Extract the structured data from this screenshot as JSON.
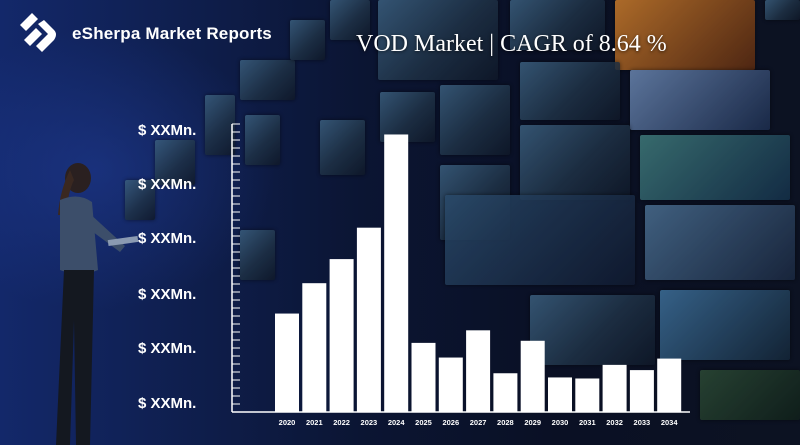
{
  "brand": {
    "name": "eSherpa Market Reports"
  },
  "chart_data": {
    "type": "bar",
    "title": "VOD Market | CAGR of 8.64 %",
    "xlabel": "",
    "ylabel": "",
    "categories": [
      "2020",
      "2021",
      "2022",
      "2023",
      "2024",
      "2025",
      "2026",
      "2027",
      "2028",
      "2029",
      "2030",
      "2031",
      "2032",
      "2033",
      "2034"
    ],
    "values": [
      94,
      123,
      146,
      176,
      265,
      66,
      52,
      78,
      37,
      68,
      33,
      32,
      45,
      40,
      51
    ],
    "ylim": [
      0,
      275
    ],
    "y_tick_labels": [
      "$ XXMn.",
      "$ XXMn.",
      "$ XXMn.",
      "$ XXMn.",
      "$ XXMn.",
      "$ XXMn."
    ],
    "bar_color": "#ffffff",
    "grid": false
  }
}
